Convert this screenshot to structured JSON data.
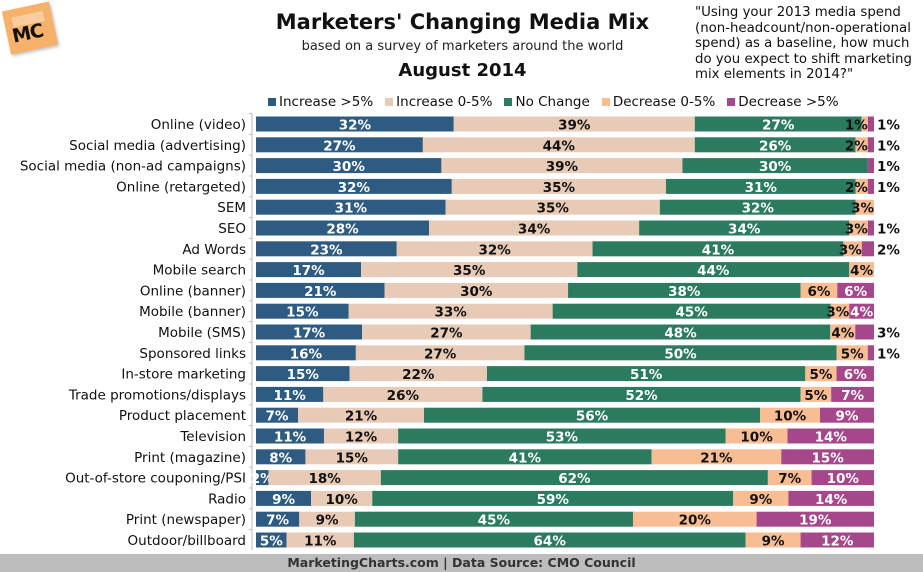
{
  "logo": {
    "text": "MC"
  },
  "header": {
    "title": "Marketers' Changing Media Mix",
    "subtitle": "based on a survey of marketers around the world",
    "date": "August 2014",
    "question": "\"Using your 2013 media spend (non-headcount/non-operational spend) as a baseline, how much do you expect to shift marketing mix elements in 2014?\""
  },
  "footer": {
    "text": "MarketingCharts.com | Data Source: CMO Council"
  },
  "chart_data": {
    "type": "bar",
    "orientation": "horizontal",
    "stacked": true,
    "title": "Marketers' Changing Media Mix",
    "subtitle": "based on a survey of marketers around the world",
    "xlabel": "",
    "ylabel": "",
    "unit": "%",
    "legend_position": "top",
    "grid": false,
    "categories": [
      "Online (video)",
      "Social media (advertising)",
      "Social media (non-ad campaigns)",
      "Online (retargeted)",
      "SEM",
      "SEO",
      "Ad Words",
      "Mobile search",
      "Online (banner)",
      "Mobile (banner)",
      "Mobile (SMS)",
      "Sponsored links",
      "In-store marketing",
      "Trade promotions/displays",
      "Product placement",
      "Television",
      "Print (magazine)",
      "Out-of-store couponing/PSI",
      "Radio",
      "Print (newspaper)",
      "Outdoor/billboard"
    ],
    "series": [
      {
        "name": "Increase >5%",
        "color": "#2e5b82",
        "label_color": "#ffffff",
        "values": [
          32,
          27,
          30,
          32,
          31,
          28,
          23,
          17,
          21,
          15,
          17,
          16,
          15,
          11,
          7,
          11,
          8,
          2,
          9,
          7,
          5
        ]
      },
      {
        "name": "Increase 0-5%",
        "color": "#e8cbb7",
        "label_color": "#111111",
        "values": [
          39,
          44,
          39,
          35,
          35,
          34,
          32,
          35,
          30,
          33,
          27,
          27,
          22,
          26,
          21,
          12,
          15,
          18,
          10,
          9,
          11
        ]
      },
      {
        "name": "No Change",
        "color": "#2b7b5e",
        "label_color": "#ffffff",
        "values": [
          27,
          26,
          30,
          31,
          32,
          34,
          41,
          44,
          38,
          45,
          48,
          50,
          51,
          52,
          56,
          53,
          41,
          62,
          59,
          45,
          64
        ]
      },
      {
        "name": "Decrease 0-5%",
        "color": "#f9bd94",
        "label_color": "#111111",
        "values": [
          1,
          2,
          0,
          2,
          3,
          3,
          3,
          4,
          6,
          3,
          4,
          5,
          5,
          5,
          10,
          10,
          21,
          7,
          9,
          20,
          9
        ]
      },
      {
        "name": "Decrease >5%",
        "color": "#a5478a",
        "label_color": "#ffffff",
        "values": [
          1,
          1,
          1,
          1,
          0,
          1,
          2,
          0,
          6,
          4,
          3,
          1,
          6,
          7,
          9,
          14,
          15,
          10,
          14,
          19,
          12
        ]
      }
    ]
  }
}
